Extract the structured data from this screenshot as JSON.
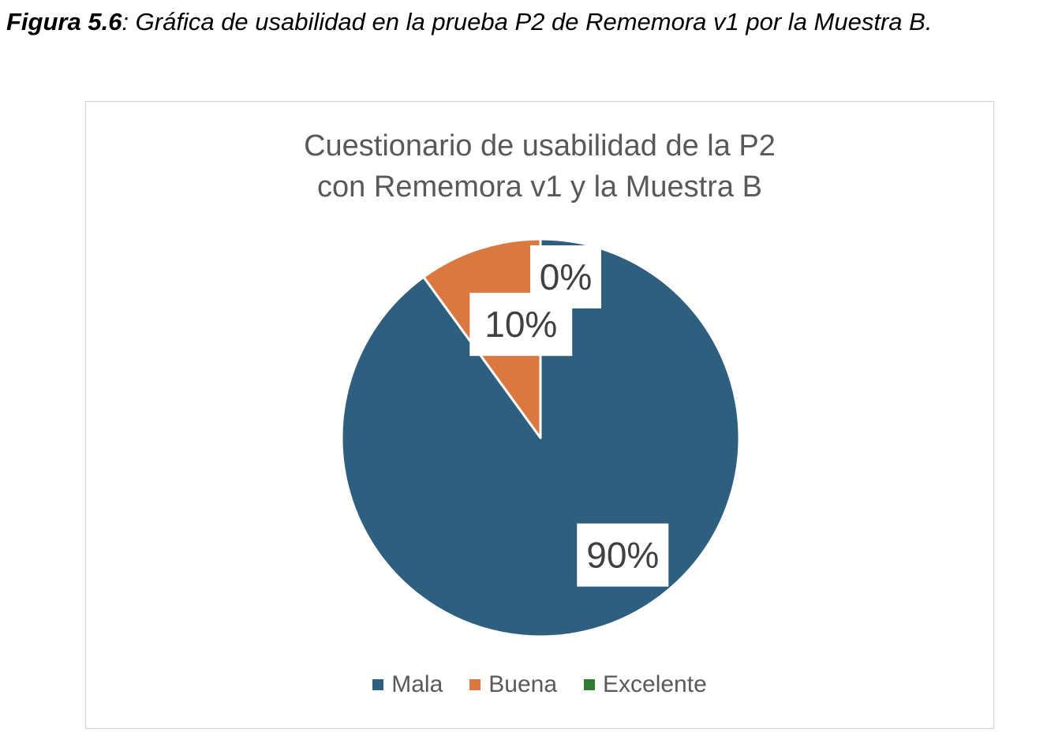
{
  "caption": {
    "label": "Figura 5.6",
    "text": ": Gráfica de usabilidad en la prueba P2 de Rememora v1 por la Muestra B."
  },
  "chart_data": {
    "type": "pie",
    "title_lines": [
      "Cuestionario de usabilidad de la P2",
      "con Rememora v1 y la Muestra B"
    ],
    "categories": [
      "Mala",
      "Buena",
      "Excelente"
    ],
    "values": [
      90,
      10,
      0
    ],
    "data_labels": [
      "90%",
      "10%",
      "0%"
    ],
    "colors": [
      "#2e5f7f",
      "#d97941",
      "#2e7d32"
    ],
    "legend_position": "bottom"
  }
}
